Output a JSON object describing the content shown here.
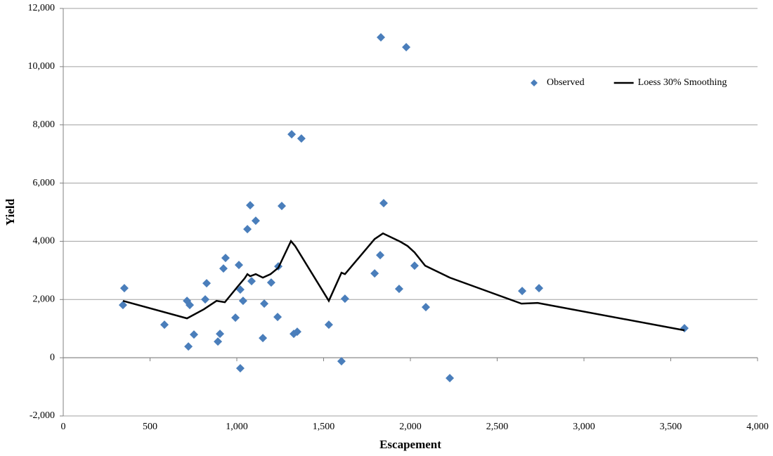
{
  "chart_data": {
    "type": "scatter",
    "x_label": "Escapement",
    "y_label": "Yield",
    "xlim": [
      0,
      4000
    ],
    "xticks": [
      0,
      500,
      {
        "value": 1000,
        "label": "1,000"
      },
      {
        "value": 1500,
        "label": "1,500"
      },
      {
        "value": 2000,
        "label": "2,000"
      },
      {
        "value": 2500,
        "label": "2,500"
      },
      {
        "value": 3000,
        "label": "3,000"
      },
      {
        "value": 3500,
        "label": "3,500"
      },
      {
        "value": 4000,
        "label": "4,000"
      }
    ],
    "ylim": [
      -2000,
      12000
    ],
    "yticks": [
      {
        "value": -2000,
        "label": "-2,000"
      },
      0,
      {
        "value": 2000,
        "label": "2,000"
      },
      {
        "value": 4000,
        "label": "4,000"
      },
      {
        "value": 6000,
        "label": "6,000"
      },
      {
        "value": 8000,
        "label": "8,000"
      },
      {
        "value": 10000,
        "label": "10,000"
      },
      {
        "value": 12000,
        "label": "12,000"
      }
    ],
    "grid": true,
    "legend": "top-right",
    "series": [
      {
        "name": "Observed",
        "color": "#4a7ebb",
        "marker": "diamond",
        "x": [
          344,
          352,
          583,
          713,
          721,
          729,
          753,
          818,
          826,
          891,
          903,
          923,
          935,
          992,
          1012,
          1020,
          1020,
          1036,
          1061,
          1077,
          1085,
          1109,
          1150,
          1158,
          1198,
          1235,
          1239,
          1259,
          1316,
          1328,
          1348,
          1372,
          1530,
          1603,
          1623,
          1794,
          1826,
          1830,
          1846,
          1935,
          1976,
          2024,
          2089,
          2227,
          2644,
          2741,
          3579
        ],
        "values": [
          1810,
          2390,
          1135,
          1955,
          386,
          1810,
          797,
          2003,
          2560,
          555,
          820,
          3065,
          3427,
          1375,
          3186,
          -362,
          2341,
          1955,
          4417,
          5238,
          2631,
          4707,
          676,
          1858,
          2583,
          1400,
          3138,
          5214,
          7676,
          820,
          893,
          7531,
          1135,
          -121,
          2027,
          2896,
          3524,
          11006,
          5310,
          2365,
          10669,
          3162,
          1738,
          -700,
          2293,
          2390,
          1014
        ]
      },
      {
        "name": "Loess 30% Smoothing",
        "color": "#000000",
        "marker": "line",
        "x": [
          344,
          713,
          810,
          883,
          931,
          1004,
          1045,
          1061,
          1077,
          1109,
          1150,
          1194,
          1239,
          1312,
          1336,
          1530,
          1603,
          1623,
          1794,
          1842,
          1943,
          1984,
          2024,
          2085,
          2227,
          2640,
          2733,
          3579
        ],
        "values": [
          1955,
          1352,
          1665,
          1955,
          1907,
          2438,
          2727,
          2872,
          2800,
          2872,
          2752,
          2872,
          3090,
          4007,
          3838,
          1955,
          2921,
          2872,
          4079,
          4272,
          3983,
          3838,
          3620,
          3162,
          2752,
          1858,
          1883,
          941
        ]
      }
    ]
  }
}
